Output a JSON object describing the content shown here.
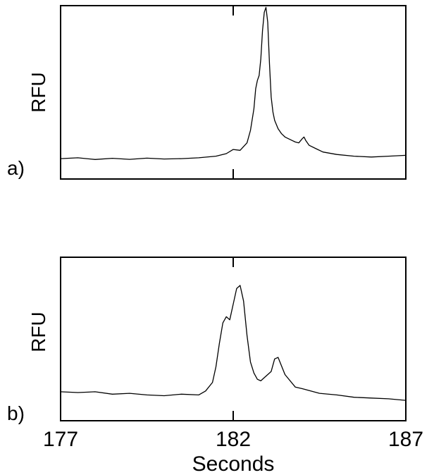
{
  "figure": {
    "xlabel": "Seconds"
  },
  "chart_data": [
    {
      "type": "line",
      "panel_label": "a)",
      "ylabel": "RFU",
      "xlim": [
        177,
        187
      ],
      "ylim": [
        0,
        1
      ],
      "x_ticks": [
        182
      ],
      "tick_labels_shown": false,
      "series": [
        {
          "x": [
            177,
            177.5,
            178,
            178.5,
            179,
            179.5,
            180,
            180.5,
            181,
            181.5,
            181.8,
            182,
            182.2,
            182.4,
            182.5,
            182.6,
            182.65,
            182.7,
            182.75,
            182.8,
            182.85,
            182.9,
            182.95,
            183,
            183.05,
            183.1,
            183.15,
            183.2,
            183.3,
            183.4,
            183.5,
            183.6,
            183.7,
            183.8,
            183.9,
            184,
            184.05,
            184.1,
            184.2,
            184.4,
            184.6,
            185,
            185.5,
            186,
            186.5,
            187
          ],
          "y": [
            0.08,
            0.085,
            0.075,
            0.082,
            0.076,
            0.083,
            0.078,
            0.08,
            0.085,
            0.095,
            0.11,
            0.135,
            0.13,
            0.175,
            0.25,
            0.38,
            0.5,
            0.55,
            0.58,
            0.68,
            0.85,
            0.96,
            0.99,
            0.9,
            0.65,
            0.45,
            0.36,
            0.31,
            0.26,
            0.23,
            0.21,
            0.2,
            0.19,
            0.18,
            0.175,
            0.2,
            0.21,
            0.19,
            0.16,
            0.14,
            0.12,
            0.105,
            0.095,
            0.09,
            0.095,
            0.1
          ]
        }
      ]
    },
    {
      "type": "line",
      "panel_label": "b)",
      "ylabel": "RFU",
      "xlim": [
        177,
        187
      ],
      "ylim": [
        0,
        1
      ],
      "x_ticks": [
        177,
        182,
        187
      ],
      "tick_labels_shown": true,
      "series": [
        {
          "x": [
            177,
            177.5,
            178,
            178.5,
            179,
            179.5,
            180,
            180.5,
            181,
            181.2,
            181.4,
            181.5,
            181.6,
            181.7,
            181.8,
            181.9,
            182,
            182.1,
            182.2,
            182.3,
            182.4,
            182.5,
            182.6,
            182.7,
            182.8,
            182.9,
            183,
            183.1,
            183.2,
            183.3,
            183.5,
            183.8,
            184,
            184.5,
            185,
            185.5,
            186,
            186.5,
            187
          ],
          "y": [
            0.14,
            0.135,
            0.14,
            0.125,
            0.13,
            0.12,
            0.115,
            0.125,
            0.12,
            0.145,
            0.2,
            0.3,
            0.45,
            0.58,
            0.62,
            0.6,
            0.7,
            0.8,
            0.82,
            0.72,
            0.5,
            0.33,
            0.26,
            0.22,
            0.21,
            0.23,
            0.25,
            0.27,
            0.35,
            0.36,
            0.25,
            0.17,
            0.16,
            0.13,
            0.12,
            0.105,
            0.1,
            0.095,
            0.085
          ]
        }
      ]
    }
  ]
}
